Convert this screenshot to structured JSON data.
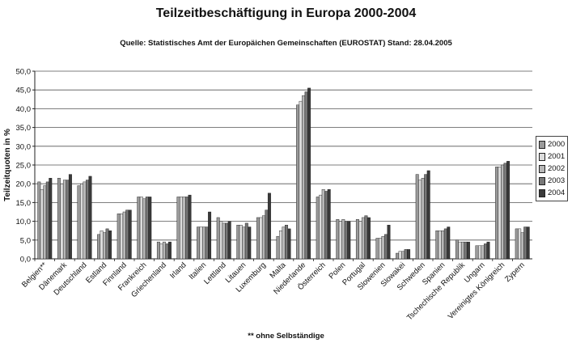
{
  "chart_data": {
    "type": "bar",
    "title": "Teilzeitbeschäftigung in Europa 2000-2004",
    "subtitle": "Quelle: Statistisches Amt der Europäichen Gemeinschaften (EUROSTAT) Stand: 28.04.2005",
    "ylabel": "Teilzeitquoten in %",
    "xlabel": "",
    "footnote": "** ohne Selbständige",
    "ylim": [
      0,
      50
    ],
    "y_tick_step": 5,
    "y_tick_labels": [
      "0,0",
      "5,0",
      "10,0",
      "15,0",
      "20,0",
      "25,0",
      "30,0",
      "35,0",
      "40,0",
      "45,0",
      "50,0"
    ],
    "grid": "horizontal",
    "legend_position": "right",
    "categories": [
      "Belgien**",
      "Dänemark",
      "Deutschland",
      "Estland",
      "Finnland",
      "Frankreich",
      "Griechenland",
      "Irland",
      "Italien",
      "Lettland",
      "Litauen",
      "Luxemburg",
      "Malta",
      "Niederlande",
      "Österreich",
      "Polen",
      "Portugal",
      "Slowenien",
      "Slowakei",
      "Schweden",
      "Spanien",
      "Tschechische Republik",
      "Ungarn",
      "Vereinigtes Königreich",
      "Zypern"
    ],
    "series": [
      {
        "name": "2000",
        "color": "#9a9a9a",
        "values": [
          20.5,
          21.5,
          19.5,
          6.5,
          12.0,
          16.5,
          4.5,
          16.5,
          8.5,
          11.0,
          9.0,
          11.0,
          6.0,
          41.0,
          16.5,
          10.5,
          10.5,
          5.5,
          1.5,
          22.5,
          7.5,
          5.0,
          3.5,
          24.5,
          8.0
        ]
      },
      {
        "name": "2001",
        "color": "#dcdcdc",
        "values": [
          18.5,
          20.0,
          20.0,
          7.5,
          12.0,
          16.5,
          4.0,
          16.5,
          8.5,
          10.0,
          9.0,
          11.0,
          7.5,
          42.0,
          17.0,
          10.0,
          10.0,
          5.5,
          2.0,
          21.0,
          7.5,
          4.5,
          3.5,
          24.5,
          8.0
        ]
      },
      {
        "name": "2002",
        "color": "#b8b8b8",
        "values": [
          19.5,
          21.0,
          20.5,
          7.0,
          12.5,
          16.0,
          4.5,
          16.5,
          8.5,
          9.5,
          8.5,
          11.5,
          8.5,
          43.5,
          18.5,
          10.5,
          11.0,
          6.0,
          2.0,
          21.5,
          7.5,
          4.5,
          3.5,
          25.0,
          7.0
        ]
      },
      {
        "name": "2003",
        "color": "#777777",
        "values": [
          20.5,
          21.0,
          21.0,
          8.0,
          13.0,
          16.5,
          4.0,
          16.5,
          8.5,
          9.5,
          9.5,
          13.0,
          9.0,
          44.5,
          18.0,
          10.0,
          11.5,
          6.5,
          2.5,
          22.5,
          8.0,
          4.5,
          4.0,
          25.5,
          8.5
        ]
      },
      {
        "name": "2004",
        "color": "#3a3a3a",
        "values": [
          21.5,
          22.5,
          22.0,
          7.5,
          13.0,
          16.5,
          4.5,
          17.0,
          12.5,
          10.0,
          8.5,
          17.5,
          8.0,
          45.5,
          18.5,
          10.0,
          11.0,
          9.0,
          2.5,
          23.5,
          8.5,
          4.5,
          4.5,
          26.0,
          8.5
        ]
      }
    ]
  }
}
